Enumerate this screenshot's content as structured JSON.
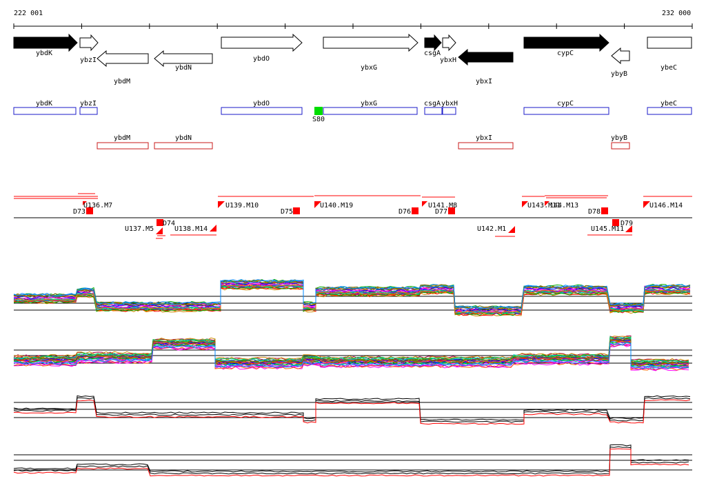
{
  "ruler": {
    "start_label": "222 001",
    "end_label": "232 000"
  },
  "colors": {
    "forward_block": "#1a1ac8",
    "reverse_block": "#c81a1a",
    "segment": "#ff0000",
    "sigma_marker": "#00dd00",
    "axis": "#000000"
  },
  "genes": [
    {
      "name": "ybdK",
      "strand": "+",
      "filled": true
    },
    {
      "name": "ybzI",
      "strand": "+",
      "filled": false
    },
    {
      "name": "ybdM",
      "strand": "-",
      "filled": false
    },
    {
      "name": "ybdN",
      "strand": "-",
      "filled": false
    },
    {
      "name": "ybdO",
      "strand": "+",
      "filled": false
    },
    {
      "name": "ybxG",
      "strand": "+",
      "filled": false
    },
    {
      "name": "csgA",
      "strand": "+",
      "filled": true
    },
    {
      "name": "ybxH",
      "strand": "+",
      "filled": false
    },
    {
      "name": "ybxI",
      "strand": "-",
      "filled": true
    },
    {
      "name": "cypC",
      "strand": "+",
      "filled": true
    },
    {
      "name": "ybyB",
      "strand": "-",
      "filled": false
    },
    {
      "name": "ybeC",
      "strand": "+",
      "filled": false
    }
  ],
  "forward_blocks": [
    "ybdK",
    "ybzI",
    "ybdO",
    "ybxG",
    "csgA",
    "ybxH",
    "cypC",
    "ybeC"
  ],
  "reverse_blocks": [
    "ybdM",
    "ybdN",
    "ybxI",
    "ybyB"
  ],
  "sigma_marker": {
    "label": "S80",
    "color": "#00dd00"
  },
  "segments_upper": [
    "U136.M7",
    "U139.M10",
    "U140.M19",
    "U141.M8",
    "U143.M11",
    "144.M13",
    "U146.M14"
  ],
  "segments_lower": [
    "U137.M5",
    "U138.M14",
    "U142.M1",
    "U145.M11"
  ],
  "downshifts": [
    "D73",
    "D74",
    "D75",
    "D76",
    "D77",
    "D78",
    "D79"
  ],
  "profile_panels": [
    {
      "id": "panel1",
      "colored": true
    },
    {
      "id": "panel2",
      "colored": true
    },
    {
      "id": "panel3",
      "colored": false
    },
    {
      "id": "panel4",
      "colored": false
    }
  ]
}
